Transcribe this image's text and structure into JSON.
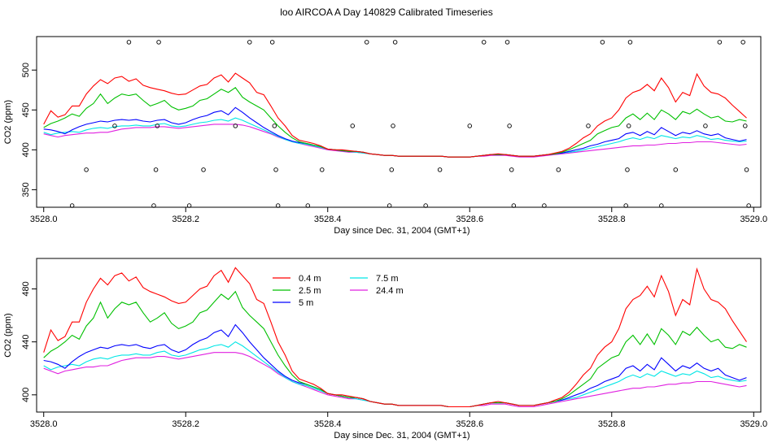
{
  "title": "loo AIRCOA A  Day 140829  Calibrated Timeseries",
  "colors": {
    "0.4 m": "#ff0000",
    "2.5 m": "#00c000",
    "5 m": "#0000ff",
    "7.5 m": "#00e6e6",
    "24.4 m": "#e020e0"
  },
  "chart_data": [
    {
      "type": "line",
      "title": "",
      "xlabel": "Day since Dec. 31, 2004 (GMT+1)",
      "ylabel": "CO2 (ppm)",
      "xlim": [
        3527.99,
        3529.01
      ],
      "ylim": [
        328,
        542
      ],
      "xticks": [
        "3528.0",
        "3528.2",
        "3528.4",
        "3528.6",
        "3528.8",
        "3529.0"
      ],
      "yticks": [
        "350",
        "400",
        "450",
        "500"
      ],
      "legend": "none",
      "grid": false,
      "x": [
        3528.0,
        3528.01,
        3528.02,
        3528.03,
        3528.04,
        3528.05,
        3528.06,
        3528.07,
        3528.08,
        3528.09,
        3528.1,
        3528.11,
        3528.12,
        3528.13,
        3528.14,
        3528.15,
        3528.16,
        3528.17,
        3528.18,
        3528.19,
        3528.2,
        3528.21,
        3528.22,
        3528.23,
        3528.24,
        3528.25,
        3528.26,
        3528.27,
        3528.28,
        3528.29,
        3528.3,
        3528.31,
        3528.32,
        3528.33,
        3528.34,
        3528.35,
        3528.36,
        3528.37,
        3528.38,
        3528.39,
        3528.4,
        3528.41,
        3528.42,
        3528.43,
        3528.44,
        3528.45,
        3528.46,
        3528.47,
        3528.48,
        3528.49,
        3528.5,
        3528.51,
        3528.52,
        3528.53,
        3528.54,
        3528.55,
        3528.56,
        3528.57,
        3528.58,
        3528.59,
        3528.6,
        3528.61,
        3528.62,
        3528.63,
        3528.64,
        3528.65,
        3528.66,
        3528.67,
        3528.68,
        3528.69,
        3528.7,
        3528.71,
        3528.72,
        3528.73,
        3528.74,
        3528.75,
        3528.76,
        3528.77,
        3528.78,
        3528.79,
        3528.8,
        3528.81,
        3528.82,
        3528.83,
        3528.84,
        3528.85,
        3528.86,
        3528.87,
        3528.88,
        3528.89,
        3528.9,
        3528.91,
        3528.92,
        3528.93,
        3528.94,
        3528.95,
        3528.96,
        3528.97,
        3528.98,
        3528.99
      ],
      "series": [
        {
          "name": "0.4 m",
          "values": [
            432,
            449,
            441,
            444,
            455,
            455,
            470,
            480,
            488,
            483,
            490,
            492,
            486,
            489,
            481,
            478,
            476,
            474,
            471,
            469,
            470,
            475,
            480,
            482,
            490,
            494,
            485,
            496,
            490,
            484,
            472,
            469,
            455,
            440,
            430,
            418,
            412,
            410,
            408,
            405,
            401,
            400,
            400,
            399,
            398,
            397,
            395,
            394,
            393,
            393,
            392,
            392,
            392,
            392,
            392,
            392,
            392,
            391,
            391,
            391,
            391,
            392,
            393,
            394,
            395,
            394,
            393,
            392,
            392,
            392,
            393,
            394,
            396,
            398,
            402,
            408,
            415,
            420,
            430,
            436,
            440,
            450,
            465,
            472,
            475,
            482,
            474,
            490,
            478,
            460,
            472,
            468,
            495,
            480,
            472,
            470,
            465,
            456,
            448,
            440
          ]
        },
        {
          "name": "2.5 m",
          "values": [
            428,
            433,
            436,
            440,
            445,
            442,
            452,
            458,
            470,
            458,
            465,
            470,
            468,
            470,
            462,
            455,
            458,
            462,
            454,
            450,
            452,
            455,
            462,
            464,
            470,
            476,
            472,
            478,
            466,
            460,
            455,
            450,
            440,
            430,
            422,
            415,
            410,
            408,
            406,
            404,
            401,
            400,
            399,
            398,
            398,
            397,
            395,
            394,
            393,
            393,
            392,
            392,
            392,
            392,
            392,
            392,
            392,
            391,
            391,
            391,
            391,
            392,
            393,
            394,
            394,
            394,
            393,
            392,
            392,
            392,
            393,
            394,
            395,
            397,
            400,
            404,
            408,
            412,
            420,
            424,
            428,
            430,
            440,
            445,
            438,
            446,
            438,
            450,
            445,
            438,
            448,
            445,
            451,
            445,
            440,
            442,
            436,
            435,
            438,
            436
          ]
        },
        {
          "name": "5 m",
          "values": [
            426,
            425,
            423,
            420,
            425,
            429,
            432,
            434,
            436,
            435,
            437,
            438,
            437,
            438,
            436,
            435,
            437,
            438,
            434,
            432,
            434,
            438,
            441,
            443,
            447,
            449,
            444,
            453,
            447,
            440,
            434,
            428,
            423,
            418,
            414,
            411,
            409,
            408,
            406,
            404,
            401,
            400,
            399,
            398,
            398,
            397,
            395,
            394,
            393,
            393,
            392,
            392,
            392,
            392,
            392,
            392,
            392,
            391,
            391,
            391,
            391,
            392,
            393,
            394,
            394,
            394,
            393,
            392,
            392,
            392,
            393,
            394,
            395,
            396,
            398,
            400,
            402,
            405,
            407,
            410,
            412,
            414,
            420,
            422,
            418,
            423,
            419,
            428,
            423,
            418,
            422,
            420,
            424,
            420,
            418,
            420,
            415,
            413,
            411,
            413
          ]
        },
        {
          "name": "7.5 m",
          "values": [
            422,
            419,
            421,
            422,
            423,
            422,
            425,
            427,
            428,
            427,
            429,
            430,
            430,
            431,
            430,
            430,
            432,
            433,
            430,
            429,
            430,
            432,
            434,
            435,
            437,
            438,
            436,
            440,
            437,
            433,
            429,
            425,
            421,
            417,
            413,
            410,
            408,
            407,
            405,
            403,
            401,
            400,
            399,
            398,
            397,
            396,
            395,
            394,
            393,
            393,
            392,
            392,
            392,
            392,
            392,
            392,
            392,
            391,
            391,
            391,
            391,
            392,
            393,
            394,
            394,
            394,
            393,
            392,
            392,
            392,
            393,
            394,
            395,
            396,
            397,
            398,
            400,
            402,
            404,
            406,
            408,
            410,
            413,
            415,
            413,
            416,
            414,
            418,
            416,
            414,
            416,
            415,
            418,
            416,
            413,
            414,
            412,
            411,
            410,
            411
          ]
        },
        {
          "name": "24.4 m",
          "values": [
            420,
            418,
            416,
            418,
            419,
            420,
            421,
            421,
            422,
            422,
            424,
            426,
            427,
            428,
            428,
            428,
            429,
            429,
            428,
            427,
            428,
            429,
            430,
            431,
            432,
            432,
            432,
            432,
            431,
            429,
            426,
            423,
            420,
            416,
            413,
            410,
            408,
            406,
            404,
            402,
            400,
            399,
            398,
            397,
            397,
            396,
            395,
            394,
            393,
            393,
            392,
            392,
            392,
            392,
            392,
            392,
            392,
            391,
            391,
            391,
            391,
            392,
            392,
            393,
            393,
            393,
            392,
            391,
            391,
            391,
            392,
            393,
            394,
            395,
            396,
            397,
            398,
            399,
            400,
            401,
            402,
            403,
            404,
            405,
            405,
            406,
            406,
            407,
            408,
            408,
            409,
            409,
            410,
            410,
            410,
            409,
            408,
            407,
            406,
            407
          ]
        }
      ],
      "points": [
        {
          "x": 3528.04,
          "y": 330
        },
        {
          "x": 3528.06,
          "y": 375
        },
        {
          "x": 3528.1,
          "y": 430
        },
        {
          "x": 3528.12,
          "y": 535
        },
        {
          "x": 3528.155,
          "y": 330
        },
        {
          "x": 3528.158,
          "y": 375
        },
        {
          "x": 3528.16,
          "y": 430
        },
        {
          "x": 3528.162,
          "y": 535
        },
        {
          "x": 3528.205,
          "y": 330
        },
        {
          "x": 3528.225,
          "y": 375
        },
        {
          "x": 3528.27,
          "y": 430
        },
        {
          "x": 3528.29,
          "y": 535
        },
        {
          "x": 3528.322,
          "y": 535
        },
        {
          "x": 3528.325,
          "y": 430
        },
        {
          "x": 3528.327,
          "y": 375
        },
        {
          "x": 3528.33,
          "y": 330
        },
        {
          "x": 3528.372,
          "y": 330
        },
        {
          "x": 3528.392,
          "y": 375
        },
        {
          "x": 3528.435,
          "y": 430
        },
        {
          "x": 3528.455,
          "y": 535
        },
        {
          "x": 3528.487,
          "y": 330
        },
        {
          "x": 3528.49,
          "y": 375
        },
        {
          "x": 3528.492,
          "y": 430
        },
        {
          "x": 3528.495,
          "y": 535
        },
        {
          "x": 3528.538,
          "y": 330
        },
        {
          "x": 3528.558,
          "y": 375
        },
        {
          "x": 3528.6,
          "y": 430
        },
        {
          "x": 3528.62,
          "y": 535
        },
        {
          "x": 3528.653,
          "y": 535
        },
        {
          "x": 3528.656,
          "y": 430
        },
        {
          "x": 3528.659,
          "y": 375
        },
        {
          "x": 3528.662,
          "y": 330
        },
        {
          "x": 3528.705,
          "y": 330
        },
        {
          "x": 3528.725,
          "y": 375
        },
        {
          "x": 3528.767,
          "y": 430
        },
        {
          "x": 3528.787,
          "y": 535
        },
        {
          "x": 3528.82,
          "y": 330
        },
        {
          "x": 3528.822,
          "y": 375
        },
        {
          "x": 3528.824,
          "y": 430
        },
        {
          "x": 3528.826,
          "y": 535
        },
        {
          "x": 3528.87,
          "y": 330
        },
        {
          "x": 3528.89,
          "y": 375
        },
        {
          "x": 3528.932,
          "y": 430
        },
        {
          "x": 3528.952,
          "y": 535
        },
        {
          "x": 3528.985,
          "y": 535
        },
        {
          "x": 3528.988,
          "y": 430
        },
        {
          "x": 3528.99,
          "y": 375
        },
        {
          "x": 3528.993,
          "y": 330
        }
      ]
    },
    {
      "type": "line",
      "title": "",
      "xlabel": "Day since Dec. 31, 2004 (GMT+1)",
      "ylabel": "CO2 (ppm)",
      "xlim": [
        3527.99,
        3529.01
      ],
      "ylim": [
        387,
        503
      ],
      "xticks": [
        "3528.0",
        "3528.2",
        "3528.4",
        "3528.6",
        "3528.8",
        "3529.0"
      ],
      "yticks": [
        "400",
        "440",
        "480"
      ],
      "legend": "top-left",
      "legend_entries": [
        "0.4 m",
        "2.5 m",
        "5 m",
        "7.5 m",
        "24.4 m"
      ],
      "grid": false,
      "series_ref": "same as panel 1"
    }
  ]
}
